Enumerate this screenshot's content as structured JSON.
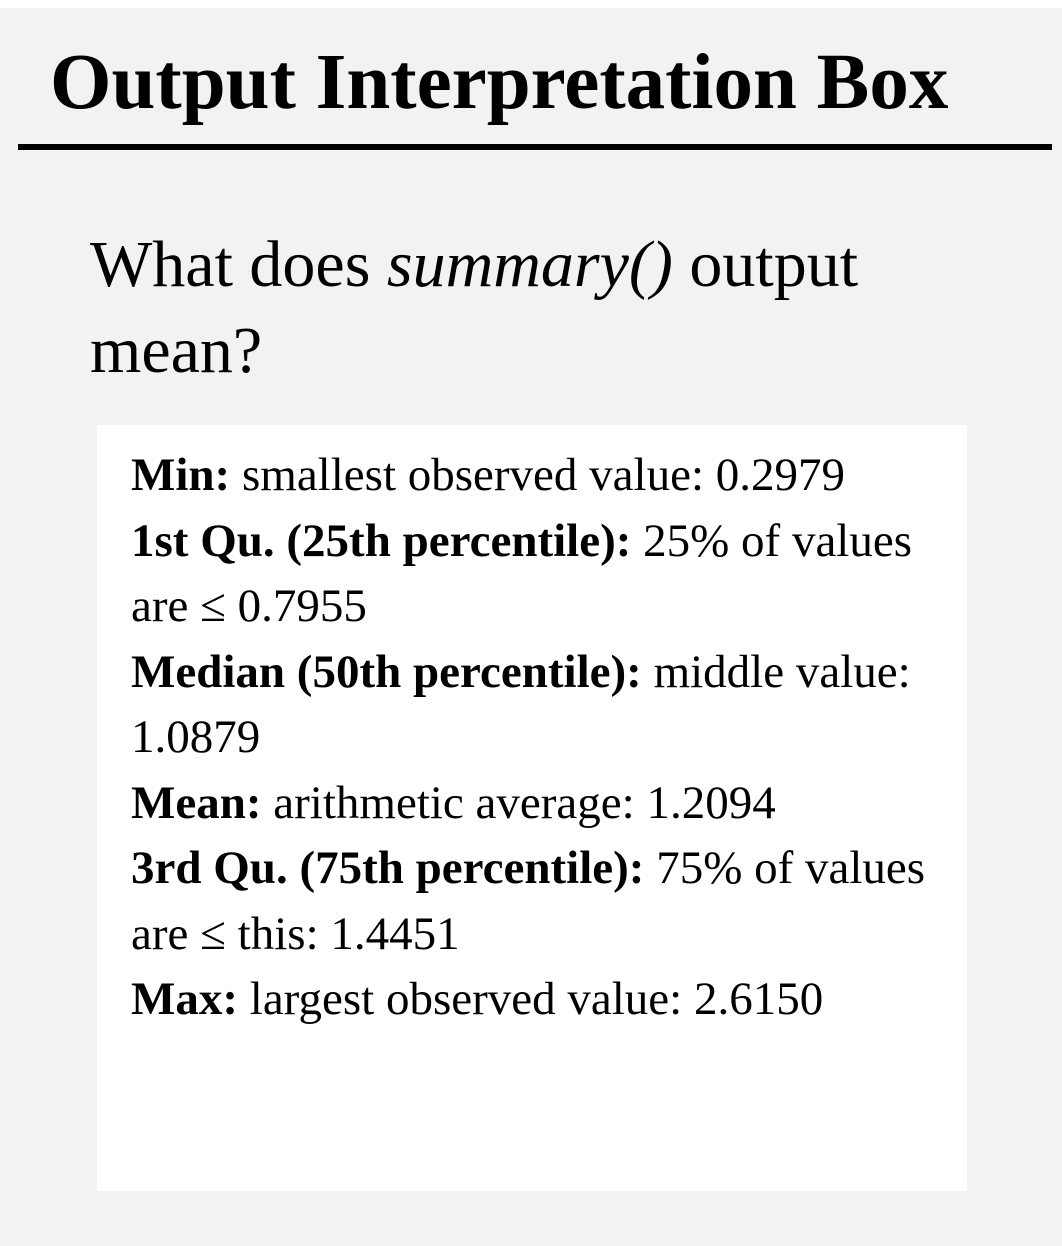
{
  "title": "Output Interpretation Box",
  "question": {
    "prefix": "What does ",
    "function": "summary()",
    "suffix": " output mean?"
  },
  "definitions": [
    {
      "term": "Min:",
      "description": " smallest observed value: 0.2979"
    },
    {
      "term": "1st Qu. (25th percentile):",
      "description": " 25% of values are ≤ 0.7955"
    },
    {
      "term": "Median (50th percentile):",
      "description": " middle value: 1.0879"
    },
    {
      "term": "Mean:",
      "description": " arithmetic average: 1.2094"
    },
    {
      "term": "3rd Qu. (75th percentile):",
      "description": " 75% of values are ≤ this: 1.4451"
    },
    {
      "term": "Max:",
      "description": " largest observed value: 2.6150"
    }
  ],
  "colors": {
    "panel_background": "#f2f2f2",
    "box_background": "#ffffff",
    "text": "#000000",
    "rule": "#000000"
  }
}
